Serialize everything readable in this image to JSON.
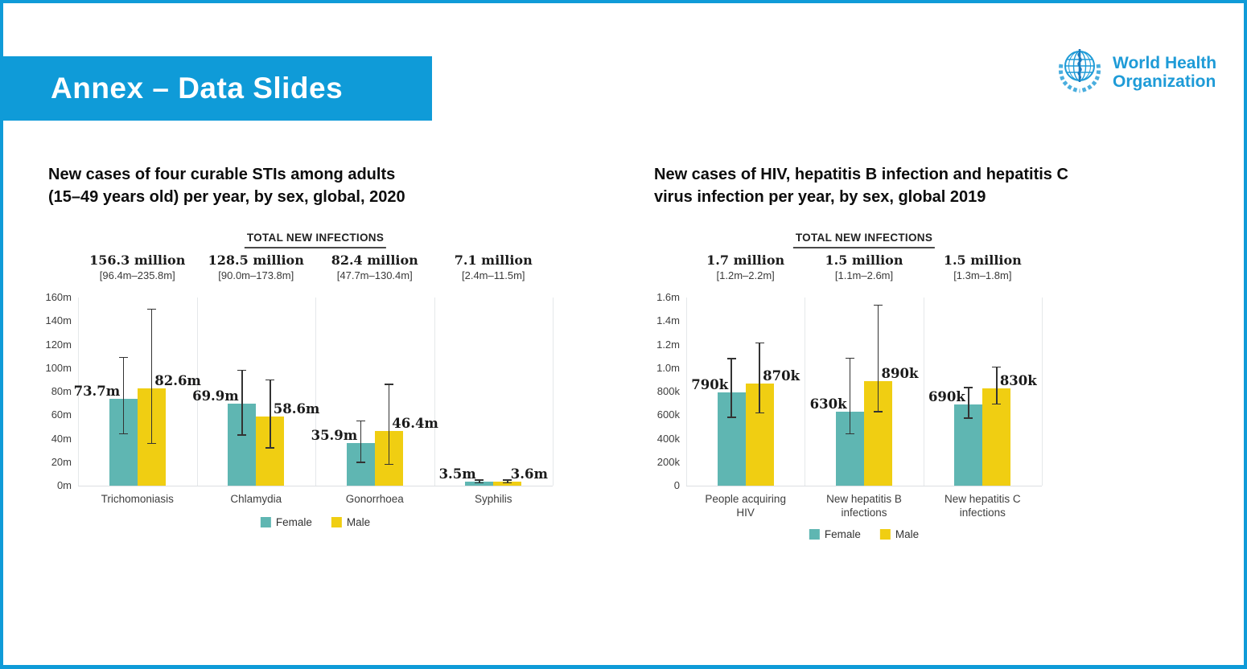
{
  "slide": {
    "banner_title": "Annex – Data Slides",
    "logo_line1": "World Health",
    "logo_line2": "Organization"
  },
  "colors": {
    "accent_blue": "#0F9BD8",
    "who_blue": "#1E9BD7",
    "female": "#5FB6B2",
    "male": "#F0CE12",
    "error_bar": "#333333"
  },
  "chart_data": [
    {
      "type": "bar",
      "title_lines": [
        "New cases of four curable STIs among adults",
        "(15–49 years old) per year, by sex, global, 2020"
      ],
      "header": "TOTAL NEW INFECTIONS",
      "unit": "million",
      "ylim": [
        0,
        160
      ],
      "grid": false,
      "legend_position": "bottom",
      "ytick_values": [
        0,
        20,
        40,
        60,
        80,
        100,
        120,
        140,
        160
      ],
      "ytick_labels": [
        "0m",
        "20m",
        "40m",
        "60m",
        "80m",
        "100m",
        "120m",
        "140m",
        "160m"
      ],
      "categories": [
        "Trichomoniasis",
        "Chlamydia",
        "Gonorrhoea",
        "Syphilis"
      ],
      "totals": [
        {
          "value": "156.3 million",
          "range": "[96.4m–235.8m]"
        },
        {
          "value": "128.5 million",
          "range": "[90.0m–173.8m]"
        },
        {
          "value": "82.4 million",
          "range": "[47.7m–130.4m]"
        },
        {
          "value": "7.1 million",
          "range": "[2.4m–11.5m]"
        }
      ],
      "legend": [
        "Female",
        "Male"
      ],
      "series": [
        {
          "name": "Female",
          "color": "#5FB6B2",
          "values": [
            73.7,
            69.9,
            35.9,
            3.5
          ],
          "bar_labels": [
            "73.7m",
            "69.9m",
            "35.9m",
            "3.5m"
          ],
          "error_low": [
            44,
            43,
            20,
            2.3
          ],
          "error_high": [
            109,
            98,
            55,
            4.8
          ]
        },
        {
          "name": "Male",
          "color": "#F0CE12",
          "values": [
            82.6,
            58.6,
            46.4,
            3.6
          ],
          "bar_labels": [
            "82.6m",
            "58.6m",
            "46.4m",
            "3.6m"
          ],
          "error_low": [
            36,
            32,
            18,
            2.3
          ],
          "error_high": [
            150,
            90,
            86,
            4.8
          ]
        }
      ]
    },
    {
      "type": "bar",
      "title_lines": [
        "New cases of HIV, hepatitis B infection and hepatitis C",
        "virus infection per year, by sex, global 2019"
      ],
      "header": "TOTAL NEW INFECTIONS",
      "unit": "thousand",
      "ylim": [
        0,
        1600
      ],
      "grid": false,
      "legend_position": "bottom",
      "ytick_values": [
        0,
        200,
        400,
        600,
        800,
        1000,
        1200,
        1400,
        1600
      ],
      "ytick_labels": [
        "0",
        "200k",
        "400k",
        "600k",
        "800k",
        "1.0m",
        "1.2m",
        "1.4m",
        "1.6m"
      ],
      "categories": [
        "People acquiring\nHIV",
        "New hepatitis B\ninfections",
        "New hepatitis C\ninfections"
      ],
      "totals": [
        {
          "value": "1.7 million",
          "range": "[1.2m–2.2m]"
        },
        {
          "value": "1.5 million",
          "range": "[1.1m–2.6m]"
        },
        {
          "value": "1.5 million",
          "range": "[1.3m–1.8m]"
        }
      ],
      "legend": [
        "Female",
        "Male"
      ],
      "series": [
        {
          "name": "Female",
          "color": "#5FB6B2",
          "values": [
            790,
            630,
            690
          ],
          "bar_labels": [
            "790k",
            "630k",
            "690k"
          ],
          "error_low": [
            580,
            440,
            575
          ],
          "error_high": [
            1080,
            1085,
            835
          ]
        },
        {
          "name": "Male",
          "color": "#F0CE12",
          "values": [
            870,
            890,
            830
          ],
          "bar_labels": [
            "870k",
            "890k",
            "830k"
          ],
          "error_low": [
            620,
            630,
            695
          ],
          "error_high": [
            1215,
            1535,
            1010
          ]
        }
      ]
    }
  ]
}
